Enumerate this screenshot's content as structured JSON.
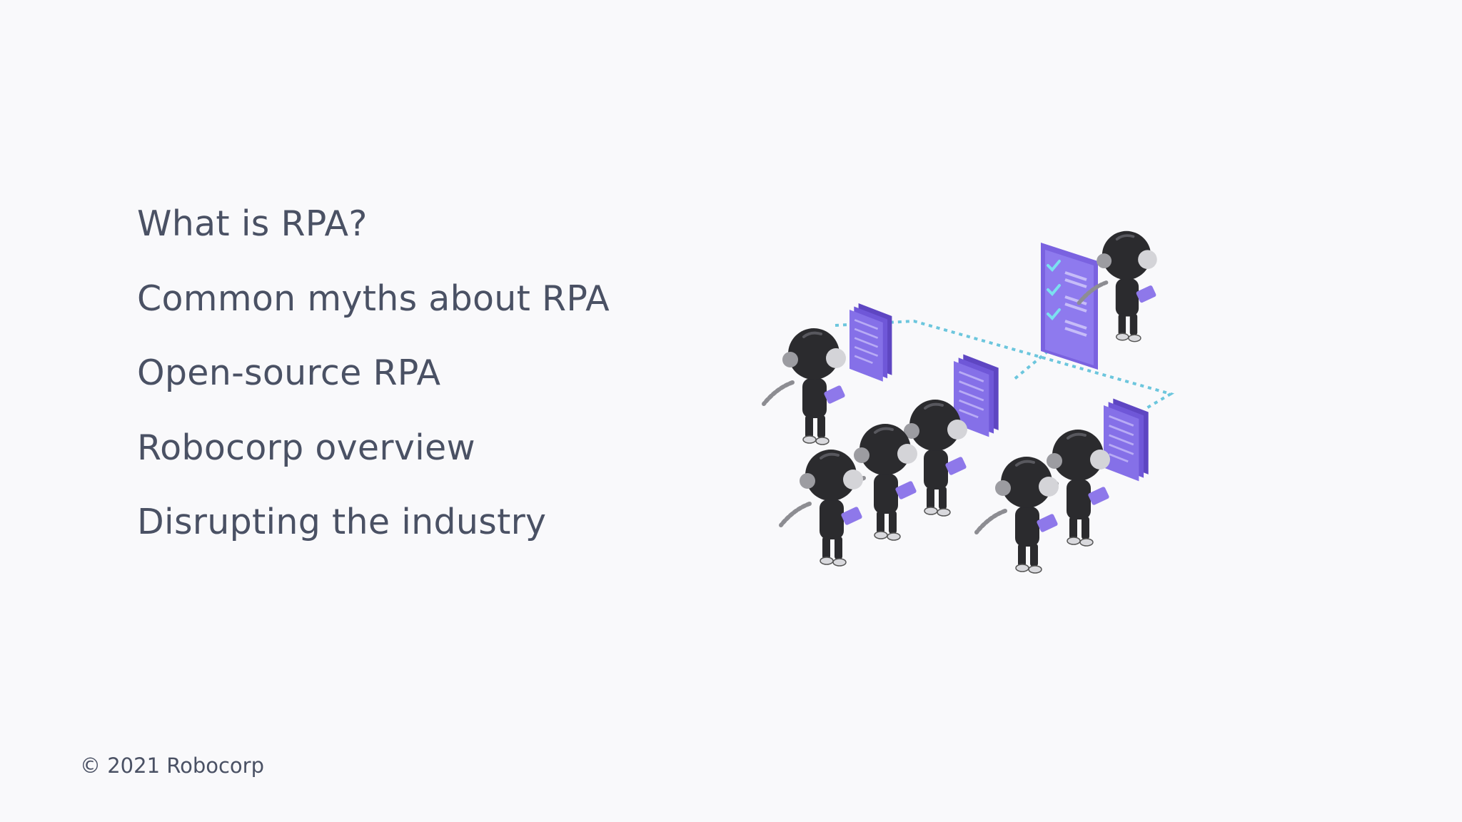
{
  "agenda": {
    "items": [
      "What is RPA?",
      "Common myths about RPA",
      "Open-source RPA",
      "Robocorp overview",
      "Disrupting the industry"
    ]
  },
  "footer": {
    "copyright": "© 2021 Robocorp"
  },
  "illustration": {
    "icon": "robot-workers-illustration"
  },
  "colors": {
    "background": "#f9f9fb",
    "text": "#4a5164",
    "document_purple": "#7a62e0",
    "connector_cyan": "#6cc6dd",
    "robot_body": "#2b2b2e"
  }
}
